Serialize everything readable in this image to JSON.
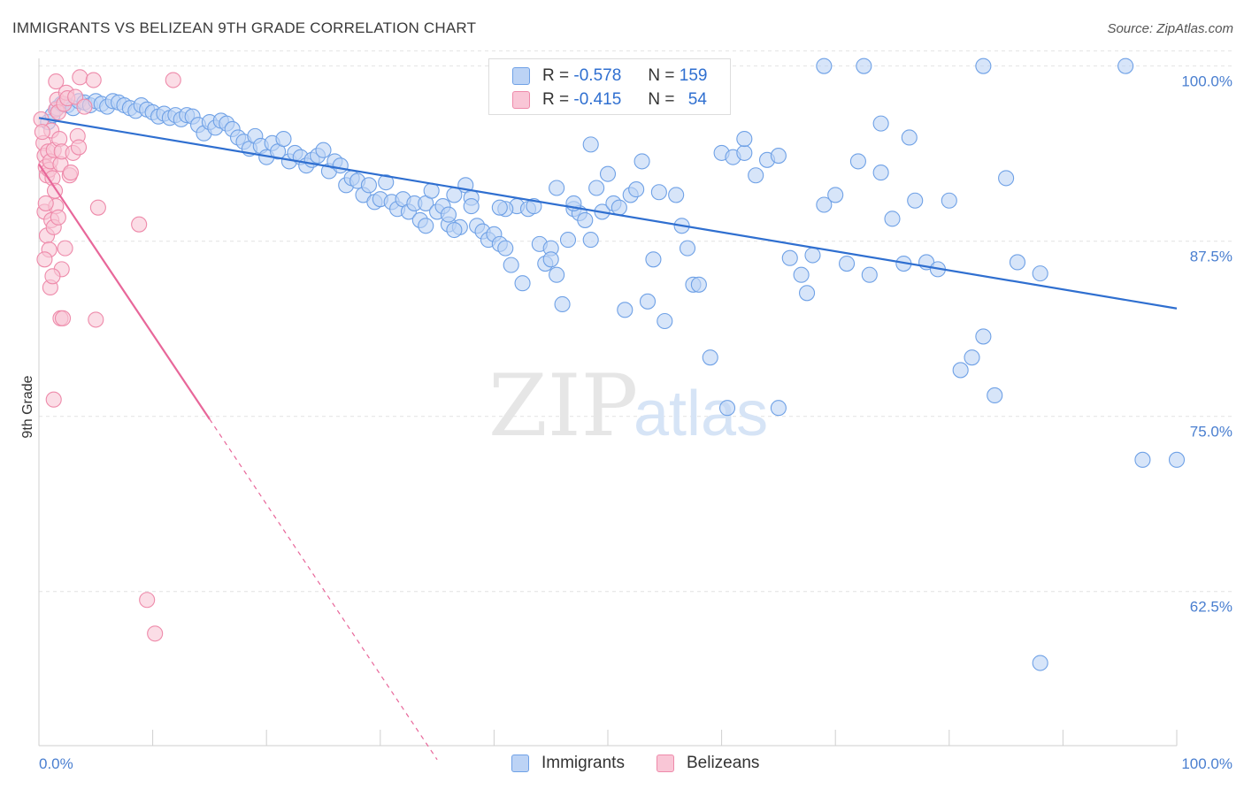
{
  "title": "IMMIGRANTS VS BELIZEAN 9TH GRADE CORRELATION CHART",
  "source": "Source: ZipAtlas.com",
  "watermark": {
    "zip": "ZIP",
    "atlas": "atlas"
  },
  "legend": {
    "r_label": "R =",
    "n_label": "N =",
    "rows": [
      {
        "r": "-0.578",
        "n": "159",
        "color": "#6fa1e6",
        "fill": "#bcd3f5"
      },
      {
        "r": "-0.415",
        "n": "54",
        "color": "#ee8aaa",
        "fill": "#f9c6d6"
      }
    ]
  },
  "chart_data": {
    "type": "scatter",
    "title": "IMMIGRANTS VS BELIZEAN 9TH GRADE CORRELATION CHART",
    "xlabel": "",
    "ylabel": "9th Grade",
    "xlim": [
      0,
      100
    ],
    "ylim": [
      51.5,
      100.8
    ],
    "x_tick_labels": [
      "0.0%",
      "100.0%"
    ],
    "y_ticks": [
      62.5,
      75.0,
      87.5,
      100.0
    ],
    "y_tick_labels": [
      "62.5%",
      "75.0%",
      "87.5%",
      "100.0%"
    ],
    "grid": true,
    "legend_position": "bottom",
    "series": [
      {
        "name": "Immigrants",
        "color": "#6fa1e6",
        "fill": "#bcd3f5",
        "trend": {
          "x": [
            0,
            100
          ],
          "y": [
            96.3,
            82.7
          ],
          "dashed_from": null
        },
        "points": [
          [
            0.8,
            96.0
          ],
          [
            1.2,
            96.5
          ],
          [
            1.6,
            97.0
          ],
          [
            2.0,
            97.3
          ],
          [
            2.5,
            97.2
          ],
          [
            3.0,
            97.0
          ],
          [
            3.5,
            97.5
          ],
          [
            4.0,
            97.4
          ],
          [
            4.5,
            97.2
          ],
          [
            5.0,
            97.5
          ],
          [
            5.5,
            97.3
          ],
          [
            6.0,
            97.1
          ],
          [
            6.5,
            97.5
          ],
          [
            7.0,
            97.4
          ],
          [
            7.5,
            97.2
          ],
          [
            8.0,
            97.0
          ],
          [
            8.5,
            96.8
          ],
          [
            9.0,
            97.2
          ],
          [
            9.5,
            96.9
          ],
          [
            10.0,
            96.7
          ],
          [
            10.5,
            96.4
          ],
          [
            11.0,
            96.6
          ],
          [
            11.5,
            96.3
          ],
          [
            12.0,
            96.5
          ],
          [
            12.5,
            96.2
          ],
          [
            13.0,
            96.5
          ],
          [
            13.5,
            96.4
          ],
          [
            14.0,
            95.8
          ],
          [
            14.5,
            95.2
          ],
          [
            15.0,
            96.0
          ],
          [
            15.5,
            95.6
          ],
          [
            16.0,
            96.1
          ],
          [
            16.5,
            95.9
          ],
          [
            17.0,
            95.5
          ],
          [
            17.5,
            94.9
          ],
          [
            18.0,
            94.6
          ],
          [
            18.5,
            94.1
          ],
          [
            19.0,
            95.0
          ],
          [
            19.5,
            94.3
          ],
          [
            20.0,
            93.5
          ],
          [
            20.5,
            94.5
          ],
          [
            21.0,
            93.9
          ],
          [
            21.5,
            94.8
          ],
          [
            22.0,
            93.2
          ],
          [
            22.5,
            93.8
          ],
          [
            23.0,
            93.5
          ],
          [
            23.5,
            92.9
          ],
          [
            24.0,
            93.3
          ],
          [
            24.5,
            93.6
          ],
          [
            25.0,
            94.0
          ],
          [
            25.5,
            92.5
          ],
          [
            26.0,
            93.2
          ],
          [
            26.5,
            92.9
          ],
          [
            27.0,
            91.5
          ],
          [
            27.5,
            92.0
          ],
          [
            28.0,
            91.8
          ],
          [
            28.5,
            90.8
          ],
          [
            29.0,
            91.5
          ],
          [
            29.5,
            90.3
          ],
          [
            30.0,
            90.5
          ],
          [
            30.5,
            91.7
          ],
          [
            31.0,
            90.3
          ],
          [
            31.5,
            89.8
          ],
          [
            32.0,
            90.5
          ],
          [
            32.5,
            89.6
          ],
          [
            33.0,
            90.2
          ],
          [
            33.5,
            89.0
          ],
          [
            34.0,
            90.2
          ],
          [
            34.5,
            91.1
          ],
          [
            35.0,
            89.6
          ],
          [
            35.5,
            90.0
          ],
          [
            36.0,
            88.7
          ],
          [
            36.5,
            90.8
          ],
          [
            37.0,
            88.5
          ],
          [
            37.5,
            91.5
          ],
          [
            38.0,
            90.6
          ],
          [
            38.5,
            88.6
          ],
          [
            39.0,
            88.2
          ],
          [
            39.5,
            87.6
          ],
          [
            40.0,
            88.0
          ],
          [
            40.5,
            87.3
          ],
          [
            41.0,
            87.0
          ],
          [
            41.5,
            85.8
          ],
          [
            42.0,
            90.0
          ],
          [
            42.5,
            84.5
          ],
          [
            43.0,
            89.8
          ],
          [
            43.5,
            90.0
          ],
          [
            44.0,
            87.3
          ],
          [
            44.5,
            85.9
          ],
          [
            45.0,
            87.0
          ],
          [
            45.5,
            85.1
          ],
          [
            46.0,
            83.0
          ],
          [
            46.5,
            87.6
          ],
          [
            47.0,
            89.8
          ],
          [
            47.5,
            89.5
          ],
          [
            48.0,
            89.0
          ],
          [
            48.5,
            87.6
          ],
          [
            49.0,
            91.3
          ],
          [
            49.5,
            89.6
          ],
          [
            50.0,
            92.3
          ],
          [
            50.5,
            90.2
          ],
          [
            51.0,
            89.9
          ],
          [
            51.5,
            82.6
          ],
          [
            52.0,
            90.8
          ],
          [
            52.5,
            91.2
          ],
          [
            53.0,
            93.2
          ],
          [
            53.5,
            83.2
          ],
          [
            54.0,
            86.2
          ],
          [
            54.5,
            91.0
          ],
          [
            55.0,
            81.8
          ],
          [
            56.0,
            90.8
          ],
          [
            56.5,
            88.6
          ],
          [
            57.0,
            87.0
          ],
          [
            57.5,
            84.4
          ],
          [
            58.0,
            84.4
          ],
          [
            59.0,
            79.2
          ],
          [
            60.0,
            93.8
          ],
          [
            61.0,
            93.5
          ],
          [
            62.0,
            93.8
          ],
          [
            63.0,
            92.2
          ],
          [
            64.0,
            93.3
          ],
          [
            65.0,
            93.6
          ],
          [
            66.0,
            86.3
          ],
          [
            67.0,
            85.1
          ],
          [
            67.5,
            83.8
          ],
          [
            68.0,
            86.5
          ],
          [
            69.0,
            90.1
          ],
          [
            70.0,
            90.8
          ],
          [
            71.0,
            85.9
          ],
          [
            72.0,
            93.2
          ],
          [
            73.0,
            85.1
          ],
          [
            74.0,
            92.4
          ],
          [
            75.0,
            89.1
          ],
          [
            76.0,
            85.9
          ],
          [
            77.0,
            90.4
          ],
          [
            78.0,
            86.0
          ],
          [
            79.0,
            85.5
          ],
          [
            80.0,
            90.4
          ],
          [
            81.0,
            78.3
          ],
          [
            82.0,
            79.2
          ],
          [
            83.0,
            80.7
          ],
          [
            84.0,
            76.5
          ],
          [
            85.0,
            92.0
          ],
          [
            86.0,
            86.0
          ],
          [
            88.0,
            85.2
          ],
          [
            97.0,
            71.9
          ],
          [
            100.0,
            71.9
          ],
          [
            88.0,
            57.4
          ],
          [
            65.0,
            75.6
          ],
          [
            60.5,
            75.6
          ],
          [
            69.0,
            100.0
          ],
          [
            72.5,
            100.0
          ],
          [
            83.0,
            100.0
          ],
          [
            95.5,
            100.0
          ],
          [
            74.0,
            95.9
          ],
          [
            76.5,
            94.9
          ],
          [
            62.0,
            94.8
          ],
          [
            48.5,
            94.4
          ],
          [
            45.5,
            91.3
          ],
          [
            41.0,
            89.8
          ],
          [
            45.0,
            86.2
          ],
          [
            36.0,
            89.4
          ],
          [
            34.0,
            88.6
          ],
          [
            36.5,
            88.3
          ],
          [
            40.5,
            89.9
          ],
          [
            38.0,
            90.0
          ],
          [
            47.0,
            90.2
          ]
        ]
      },
      {
        "name": "Belizeans",
        "color": "#ee8aaa",
        "fill": "#f9c6d6",
        "trend": {
          "x": [
            0,
            15,
            35
          ],
          "y": [
            93.0,
            74.8,
            50.5
          ],
          "dashed_from": 15
        },
        "points": [
          [
            0.2,
            96.2
          ],
          [
            0.4,
            94.5
          ],
          [
            0.5,
            93.6
          ],
          [
            0.6,
            92.8
          ],
          [
            0.7,
            92.2
          ],
          [
            0.8,
            93.9
          ],
          [
            0.9,
            92.6
          ],
          [
            1.0,
            93.2
          ],
          [
            1.1,
            95.4
          ],
          [
            1.2,
            92.0
          ],
          [
            1.3,
            94.0
          ],
          [
            1.4,
            91.1
          ],
          [
            1.5,
            96.9
          ],
          [
            1.6,
            97.6
          ],
          [
            1.7,
            96.7
          ],
          [
            1.8,
            94.8
          ],
          [
            0.3,
            95.3
          ],
          [
            0.5,
            89.6
          ],
          [
            0.7,
            87.9
          ],
          [
            0.9,
            86.9
          ],
          [
            1.1,
            89.0
          ],
          [
            1.3,
            88.5
          ],
          [
            1.5,
            90.0
          ],
          [
            1.7,
            89.2
          ],
          [
            1.9,
            93.0
          ],
          [
            2.0,
            93.9
          ],
          [
            2.2,
            97.3
          ],
          [
            2.4,
            98.1
          ],
          [
            2.5,
            97.7
          ],
          [
            2.7,
            92.2
          ],
          [
            2.8,
            92.4
          ],
          [
            3.0,
            93.8
          ],
          [
            3.2,
            97.8
          ],
          [
            3.4,
            95.0
          ],
          [
            3.5,
            94.2
          ],
          [
            3.6,
            99.2
          ],
          [
            4.0,
            97.1
          ],
          [
            1.5,
            98.9
          ],
          [
            0.5,
            86.2
          ],
          [
            1.0,
            84.2
          ],
          [
            1.9,
            82.0
          ],
          [
            2.1,
            82.0
          ],
          [
            4.8,
            99.0
          ],
          [
            5.0,
            81.9
          ],
          [
            5.2,
            89.9
          ],
          [
            8.8,
            88.7
          ],
          [
            11.8,
            99.0
          ],
          [
            1.3,
            76.2
          ],
          [
            9.5,
            61.9
          ],
          [
            10.2,
            59.5
          ],
          [
            0.6,
            90.2
          ],
          [
            2.0,
            85.5
          ],
          [
            2.3,
            87.0
          ],
          [
            1.2,
            85.0
          ]
        ]
      }
    ]
  }
}
